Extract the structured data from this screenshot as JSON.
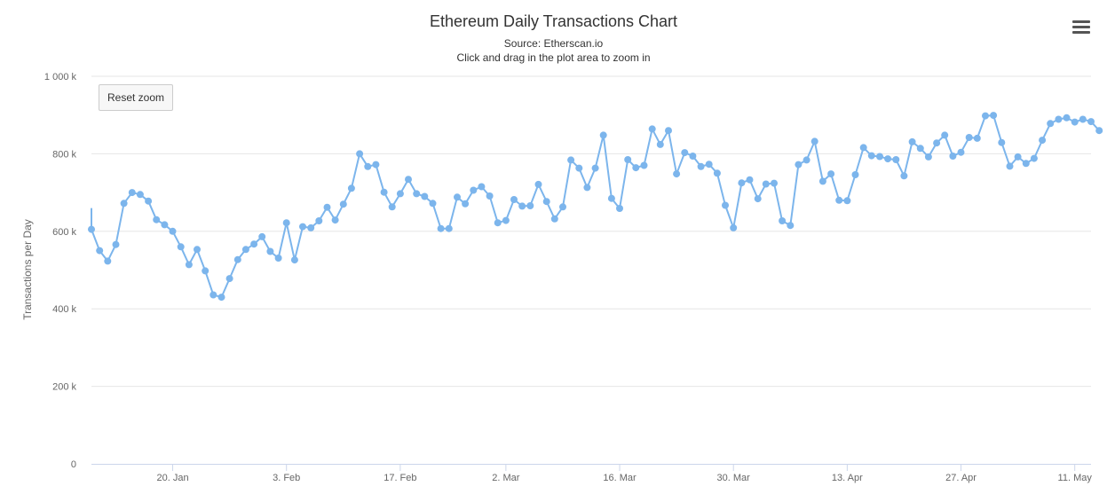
{
  "header": {
    "title": "Ethereum Daily Transactions Chart",
    "source": "Source: Etherscan.io",
    "hint": "Click and drag in the plot area to zoom in"
  },
  "toolbar": {
    "reset_zoom_label": "Reset zoom",
    "menu_icon": "hamburger-menu-icon"
  },
  "chart_data": {
    "type": "line",
    "title": "Ethereum Daily Transactions Chart",
    "subtitle": "Source: Etherscan.io",
    "xlabel": "",
    "ylabel": "Transactions per Day",
    "ylim": [
      0,
      1000000
    ],
    "y_ticks": [
      {
        "value": 0,
        "label": "0"
      },
      {
        "value": 200000,
        "label": "200 k"
      },
      {
        "value": 400000,
        "label": "400 k"
      },
      {
        "value": 600000,
        "label": "600 k"
      },
      {
        "value": 800000,
        "label": "800 k"
      },
      {
        "value": 1000000,
        "label": "1 000 k"
      }
    ],
    "x_ticks": [
      {
        "date": "2018-01-20",
        "label": "20. Jan"
      },
      {
        "date": "2018-02-03",
        "label": "3. Feb"
      },
      {
        "date": "2018-02-17",
        "label": "17. Feb"
      },
      {
        "date": "2018-03-02",
        "label": "2. Mar"
      },
      {
        "date": "2018-03-16",
        "label": "16. Mar"
      },
      {
        "date": "2018-03-30",
        "label": "30. Mar"
      },
      {
        "date": "2018-04-13",
        "label": "13. Apr"
      },
      {
        "date": "2018-04-27",
        "label": "27. Apr"
      },
      {
        "date": "2018-05-11",
        "label": "11. May"
      }
    ],
    "x_start": "2018-01-10",
    "x_end": "2018-05-13",
    "grid": true,
    "color": "#7cb5ec",
    "series": [
      {
        "values": [
          605000,
          550000,
          523000,
          566000,
          672000,
          700000,
          695000,
          678000,
          630000,
          617000,
          600000,
          560000,
          514000,
          553000,
          498000,
          436000,
          430000,
          478000,
          527000,
          553000,
          567000,
          586000,
          548000,
          531000,
          622000,
          526000,
          612000,
          609000,
          627000,
          662000,
          629000,
          670000,
          711000,
          800000,
          767000,
          772000,
          701000,
          663000,
          697000,
          734000,
          697000,
          690000,
          672000,
          607000,
          607000,
          688000,
          671000,
          706000,
          715000,
          691000,
          622000,
          628000,
          682000,
          665000,
          666000,
          721000,
          677000,
          632000,
          663000,
          784000,
          763000,
          713000,
          763000,
          848000,
          685000,
          659000,
          785000,
          764000,
          770000,
          864000,
          824000,
          860000,
          748000,
          803000,
          794000,
          767000,
          773000,
          750000,
          667000,
          609000,
          725000,
          733000,
          684000,
          722000,
          724000,
          627000,
          615000,
          772000,
          784000,
          832000,
          729000,
          748000,
          680000,
          679000,
          746000,
          816000,
          795000,
          793000,
          787000,
          785000,
          743000,
          831000,
          814000,
          792000,
          828000,
          848000,
          794000,
          804000,
          842000,
          840000,
          898000,
          899000,
          829000,
          768000,
          792000,
          775000,
          788000,
          835000,
          878000,
          889000,
          893000,
          882000,
          889000,
          883000,
          860000
        ]
      }
    ]
  }
}
